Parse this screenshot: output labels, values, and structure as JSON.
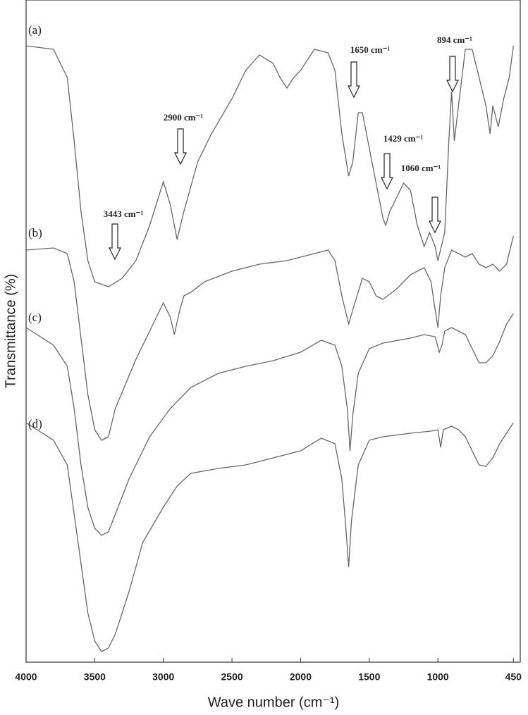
{
  "chart_data": {
    "type": "line",
    "x_label": "Wave number (cm⁻¹)",
    "y_label": "Transmittance (%)",
    "xlim": [
      4000,
      400
    ],
    "ylim": [
      0,
      94
    ],
    "xticks": [
      4000,
      3500,
      3000,
      2500,
      2000,
      1500,
      1000,
      450
    ],
    "color": "#666666",
    "annotations": [
      "3443 cm⁻¹",
      "2900 cm⁻¹",
      "1650 cm⁻¹",
      "1429 cm⁻¹",
      "1060 cm⁻¹",
      "894 cm⁻¹"
    ],
    "series": [
      {
        "name": "(a)",
        "x": [
          4000,
          3800,
          3700,
          3650,
          3600,
          3550,
          3500,
          3400,
          3300,
          3200,
          3100,
          3000,
          2950,
          2900,
          2850,
          2750,
          2650,
          2500,
          2400,
          2300,
          2200,
          2150,
          2100,
          2050,
          2000,
          1900,
          1800,
          1750,
          1700,
          1650,
          1620,
          1580,
          1550,
          1500,
          1450,
          1420,
          1400,
          1380,
          1350,
          1300,
          1250,
          1200,
          1150,
          1100,
          1060,
          1020,
          1000,
          950,
          920,
          900,
          880,
          850,
          800,
          750,
          700,
          650,
          620,
          600,
          560,
          520,
          480,
          450
        ],
        "values": [
          87.5,
          87,
          83,
          74,
          64,
          57,
          54,
          53.3,
          54.5,
          57,
          62,
          68.2,
          65,
          60,
          64,
          71,
          75,
          80,
          84,
          86.2,
          85,
          83,
          81.5,
          83,
          84,
          87,
          86.5,
          84,
          75,
          69,
          71,
          78,
          78,
          73,
          68,
          65,
          63,
          62,
          64,
          66,
          68,
          67,
          62,
          59,
          61,
          59,
          57,
          61,
          74,
          81,
          74,
          79,
          87,
          87,
          83,
          79,
          75,
          79,
          76,
          80,
          83,
          87.5
        ]
      },
      {
        "name": "(b)",
        "x": [
          4000,
          3800,
          3700,
          3650,
          3600,
          3550,
          3500,
          3450,
          3400,
          3350,
          3200,
          3100,
          3000,
          2950,
          2920,
          2880,
          2850,
          2800,
          2700,
          2500,
          2300,
          2100,
          1900,
          1800,
          1750,
          1700,
          1650,
          1620,
          1550,
          1500,
          1450,
          1400,
          1300,
          1200,
          1100,
          1050,
          1020,
          1000,
          980,
          950,
          900,
          850,
          800,
          750,
          700,
          650,
          600,
          550,
          500,
          450
        ],
        "values": [
          58.5,
          58.8,
          58,
          54,
          46,
          38,
          33,
          31.5,
          32,
          36,
          43,
          47,
          51,
          49,
          46.5,
          50,
          52,
          52.5,
          54,
          55.5,
          56.5,
          57,
          58,
          58.5,
          57,
          52,
          48,
          50,
          54.5,
          54,
          52,
          51.5,
          53,
          55,
          56,
          54,
          50,
          47.5,
          52,
          56,
          58.5,
          58,
          57.5,
          58,
          56.5,
          56,
          56.5,
          55.5,
          56.5,
          60.5
        ]
      },
      {
        "name": "(c)",
        "x": [
          4000,
          3800,
          3700,
          3650,
          3600,
          3550,
          3500,
          3450,
          3400,
          3350,
          3250,
          3100,
          2950,
          2800,
          2600,
          2400,
          2200,
          2000,
          1850,
          1750,
          1700,
          1660,
          1640,
          1620,
          1580,
          1500,
          1400,
          1200,
          1100,
          1020,
          990,
          970,
          950,
          900,
          850,
          800,
          750,
          700,
          650,
          600,
          550,
          500,
          450
        ],
        "values": [
          47.5,
          45,
          42,
          36,
          28,
          22,
          19,
          18,
          18.5,
          21,
          26,
          32,
          36,
          39,
          41,
          42,
          42.8,
          44,
          45.7,
          45,
          42,
          36,
          30,
          35,
          41,
          44.5,
          45.3,
          46,
          46.5,
          46.2,
          44,
          45,
          47,
          47.5,
          47,
          46.5,
          44.5,
          42.5,
          42.5,
          43.5,
          45.5,
          48,
          49.5
        ]
      },
      {
        "name": "(d)",
        "x": [
          4000,
          3800,
          3700,
          3650,
          3600,
          3550,
          3500,
          3450,
          3400,
          3350,
          3250,
          3150,
          3000,
          2900,
          2800,
          2600,
          2400,
          2200,
          2000,
          1850,
          1750,
          1700,
          1670,
          1650,
          1630,
          1580,
          1500,
          1400,
          1200,
          1050,
          1000,
          980,
          960,
          900,
          850,
          800,
          750,
          700,
          650,
          600,
          550,
          500,
          450
        ],
        "values": [
          34,
          31.5,
          28,
          21,
          14,
          7,
          3,
          1.5,
          2,
          4,
          10,
          17,
          22,
          25,
          26.8,
          27.5,
          28,
          29,
          30,
          31.8,
          31,
          26,
          19,
          13.5,
          20,
          28,
          31.5,
          32,
          32.5,
          32.8,
          33,
          30.5,
          33,
          33.5,
          33,
          32,
          30,
          28,
          27.8,
          29,
          31,
          32.5,
          34
        ]
      }
    ]
  }
}
